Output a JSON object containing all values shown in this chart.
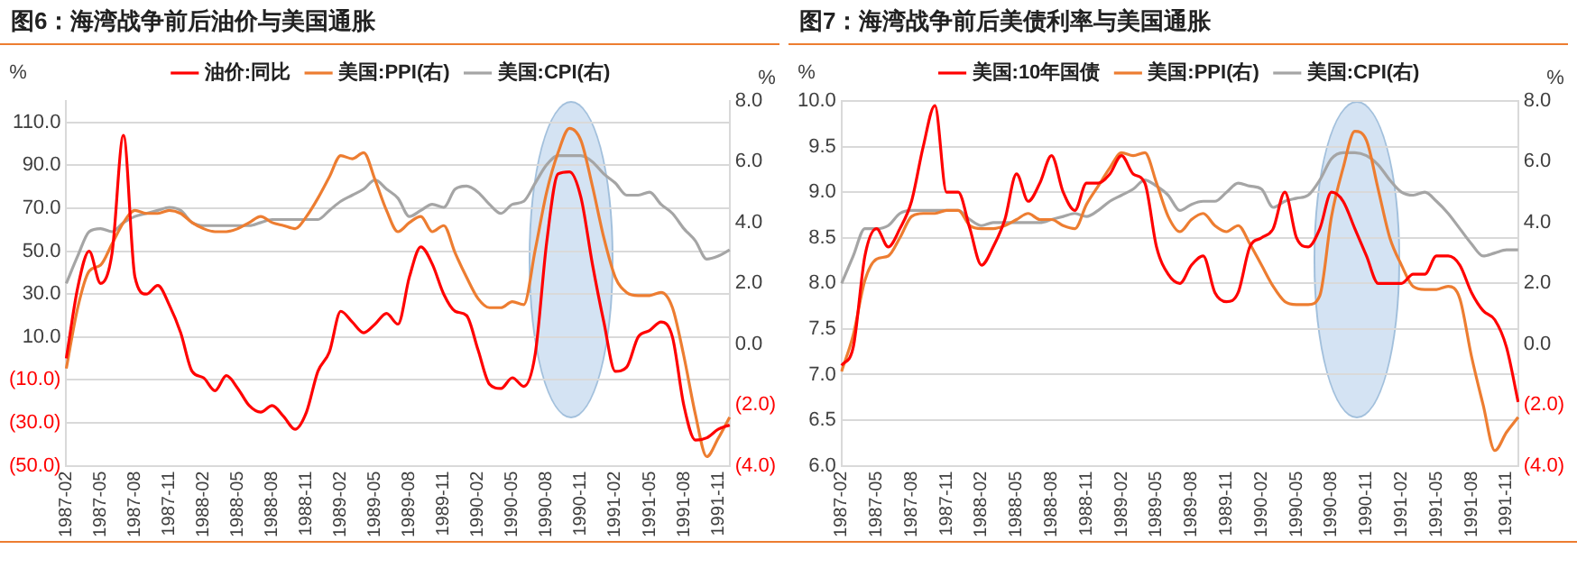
{
  "chart_data": [
    {
      "type": "line",
      "title": "图6：海湾战争前后油价与美国通胀",
      "ylabel": "%",
      "y2label": "%",
      "legend": "top",
      "grid": "y",
      "categories": [
        "1987-02",
        null,
        null,
        "1987-05",
        null,
        null,
        "1987-08",
        null,
        null,
        "1987-11",
        null,
        null,
        "1988-02",
        null,
        null,
        "1988-05",
        null,
        null,
        "1988-08",
        null,
        null,
        "1988-11",
        null,
        null,
        "1989-02",
        null,
        null,
        "1989-05",
        null,
        null,
        "1989-08",
        null,
        null,
        "1989-11",
        null,
        null,
        "1990-02",
        null,
        null,
        "1990-05",
        null,
        null,
        "1990-08",
        null,
        null,
        "1990-11",
        null,
        null,
        "1991-02",
        null,
        null,
        "1991-05",
        null,
        null,
        "1991-08",
        null,
        null,
        "1991-11",
        null
      ],
      "ylim": [
        -50,
        120
      ],
      "yticks": [
        {
          "value": -50,
          "label": "(50.0)"
        },
        {
          "value": -30,
          "label": "(30.0)"
        },
        {
          "value": -10,
          "label": "(10.0)"
        },
        {
          "value": 10,
          "label": "10.0"
        },
        {
          "value": 30,
          "label": "30.0"
        },
        {
          "value": 50,
          "label": "50.0"
        },
        {
          "value": 70,
          "label": "70.0"
        },
        {
          "value": 90,
          "label": "90.0"
        },
        {
          "value": 110,
          "label": "110.0"
        }
      ],
      "y2lim": [
        -4,
        8
      ],
      "y2ticks": [
        {
          "value": -4,
          "label": "(4.0)"
        },
        {
          "value": -2,
          "label": "(2.0)"
        },
        {
          "value": 0,
          "label": "0.0"
        },
        {
          "value": 2,
          "label": "2.0"
        },
        {
          "value": 4,
          "label": "4.0"
        },
        {
          "value": 6,
          "label": "6.0"
        },
        {
          "value": 8,
          "label": "8.0"
        }
      ],
      "series": [
        {
          "name": "油价:同比",
          "color": "#ff0000",
          "values": [
            0,
            33,
            50,
            35,
            49,
            104,
            38,
            30,
            34,
            25,
            12,
            -6,
            -9,
            -15,
            -8,
            -14,
            -22,
            -25,
            -22,
            -27,
            -33,
            -25,
            -6,
            3,
            22,
            17,
            12,
            16,
            21,
            16,
            38,
            52,
            44,
            30,
            22,
            20,
            4,
            -12,
            -14,
            -9,
            -13,
            2,
            54,
            86,
            87,
            75,
            44,
            17,
            -6,
            -4,
            10,
            13,
            17,
            10,
            -22,
            -38,
            -37,
            -33,
            -31
          ]
        },
        {
          "name": "美国:PPI(右)",
          "color": "#ed7d31",
          "axis": "y2",
          "values": [
            -0.8,
            1.2,
            2.4,
            2.6,
            3.3,
            4.0,
            4.4,
            4.3,
            4.3,
            4.4,
            4.3,
            4.0,
            3.8,
            3.7,
            3.7,
            3.8,
            4.0,
            4.2,
            4.0,
            3.9,
            3.8,
            4.2,
            4.8,
            5.5,
            6.2,
            6.1,
            6.3,
            5.4,
            4.4,
            3.7,
            4.0,
            4.2,
            3.7,
            3.9,
            3.0,
            2.2,
            1.5,
            1.2,
            1.2,
            1.4,
            1.3,
            3.1,
            5.0,
            6.3,
            7.1,
            6.7,
            5.2,
            3.5,
            2.2,
            1.7,
            1.6,
            1.6,
            1.7,
            1.2,
            -0.4,
            -2.3,
            -3.7,
            -3.1,
            -2.4
          ]
        },
        {
          "name": "美国:CPI(右)",
          "color": "#a5a5a5",
          "axis": "y2",
          "values": [
            2.0,
            2.9,
            3.7,
            3.8,
            3.7,
            4.0,
            4.2,
            4.3,
            4.4,
            4.5,
            4.4,
            4.0,
            3.9,
            3.9,
            3.9,
            3.9,
            3.9,
            4.0,
            4.1,
            4.1,
            4.1,
            4.1,
            4.1,
            4.4,
            4.7,
            4.9,
            5.1,
            5.4,
            5.1,
            4.8,
            4.2,
            4.4,
            4.6,
            4.5,
            5.1,
            5.2,
            5.0,
            4.6,
            4.3,
            4.6,
            4.7,
            5.3,
            5.9,
            6.2,
            6.2,
            6.2,
            6.0,
            5.6,
            5.3,
            4.9,
            4.9,
            5.0,
            4.6,
            4.3,
            3.8,
            3.4,
            2.8,
            2.9,
            3.1
          ]
        }
      ]
    },
    {
      "type": "line",
      "title": "图7：海湾战争前后美债利率与美国通胀",
      "ylabel": "%",
      "y2label": "%",
      "legend": "top",
      "grid": "y",
      "categories": [
        "1987-02",
        null,
        null,
        "1987-05",
        null,
        null,
        "1987-08",
        null,
        null,
        "1987-11",
        null,
        null,
        "1988-02",
        null,
        null,
        "1988-05",
        null,
        null,
        "1988-08",
        null,
        null,
        "1988-11",
        null,
        null,
        "1989-02",
        null,
        null,
        "1989-05",
        null,
        null,
        "1989-08",
        null,
        null,
        "1989-11",
        null,
        null,
        "1990-02",
        null,
        null,
        "1990-05",
        null,
        null,
        "1990-08",
        null,
        null,
        "1990-11",
        null,
        null,
        "1991-02",
        null,
        null,
        "1991-05",
        null,
        null,
        "1991-08",
        null,
        null,
        "1991-11",
        null
      ],
      "ylim": [
        6,
        10
      ],
      "yticks": [
        {
          "value": 6,
          "label": "6.0"
        },
        {
          "value": 6.5,
          "label": "6.5"
        },
        {
          "value": 7,
          "label": "7.0"
        },
        {
          "value": 7.5,
          "label": "7.5"
        },
        {
          "value": 8,
          "label": "8.0"
        },
        {
          "value": 8.5,
          "label": "8.5"
        },
        {
          "value": 9,
          "label": "9.0"
        },
        {
          "value": 9.5,
          "label": "9.5"
        },
        {
          "value": 10,
          "label": "10.0"
        }
      ],
      "y2lim": [
        -4,
        8
      ],
      "y2ticks": [
        {
          "value": -4,
          "label": "(4.0)"
        },
        {
          "value": -2,
          "label": "(2.0)"
        },
        {
          "value": 0,
          "label": "0.0"
        },
        {
          "value": 2,
          "label": "2.0"
        },
        {
          "value": 4,
          "label": "4.0"
        },
        {
          "value": 6,
          "label": "6.0"
        },
        {
          "value": 8,
          "label": "8.0"
        }
      ],
      "series": [
        {
          "name": "美国:10年国债",
          "color": "#ff0000",
          "values": [
            7.1,
            7.3,
            8.3,
            8.6,
            8.4,
            8.6,
            8.9,
            9.5,
            9.95,
            9.0,
            9.0,
            8.6,
            8.2,
            8.4,
            8.7,
            9.2,
            8.9,
            9.1,
            9.4,
            9.0,
            8.8,
            9.1,
            9.1,
            9.2,
            9.4,
            9.2,
            9.1,
            8.4,
            8.1,
            8.0,
            8.2,
            8.3,
            7.9,
            7.8,
            7.9,
            8.4,
            8.5,
            8.6,
            9.0,
            8.5,
            8.4,
            8.6,
            9.0,
            8.9,
            8.6,
            8.3,
            8.0,
            8.0,
            8.0,
            8.1,
            8.1,
            8.3,
            8.3,
            8.2,
            7.9,
            7.7,
            7.6,
            7.3,
            6.7
          ]
        },
        {
          "name": "美国:PPI(右)",
          "color": "#ed7d31",
          "axis": "y2",
          "values": [
            -0.9,
            0.3,
            2.1,
            2.8,
            2.9,
            3.5,
            4.2,
            4.3,
            4.3,
            4.4,
            4.4,
            3.9,
            3.8,
            3.8,
            3.9,
            4.1,
            4.3,
            4.1,
            4.1,
            3.9,
            3.8,
            4.6,
            5.2,
            5.8,
            6.3,
            6.2,
            6.3,
            5.3,
            4.2,
            3.7,
            4.1,
            4.3,
            3.9,
            3.7,
            3.9,
            3.3,
            2.6,
            1.9,
            1.4,
            1.3,
            1.3,
            1.6,
            4.2,
            5.8,
            7.0,
            6.7,
            5.1,
            3.5,
            2.6,
            1.9,
            1.8,
            1.8,
            1.9,
            1.5,
            -0.4,
            -2.0,
            -3.5,
            -2.9,
            -2.4
          ]
        },
        {
          "name": "美国:CPI(右)",
          "color": "#a5a5a5",
          "axis": "y2",
          "values": [
            2.0,
            2.9,
            3.8,
            3.8,
            3.9,
            4.3,
            4.4,
            4.4,
            4.4,
            4.4,
            4.4,
            4.1,
            3.9,
            4.0,
            4.0,
            4.0,
            4.0,
            4.0,
            4.1,
            4.2,
            4.3,
            4.2,
            4.4,
            4.7,
            4.9,
            5.1,
            5.4,
            5.2,
            4.9,
            4.4,
            4.6,
            4.7,
            4.7,
            5.0,
            5.3,
            5.2,
            5.1,
            4.5,
            4.7,
            4.8,
            4.9,
            5.4,
            6.1,
            6.3,
            6.3,
            6.2,
            5.9,
            5.4,
            5.0,
            4.9,
            5.0,
            4.7,
            4.3,
            3.8,
            3.3,
            2.9,
            3.0,
            3.1,
            3.1
          ]
        }
      ]
    }
  ]
}
